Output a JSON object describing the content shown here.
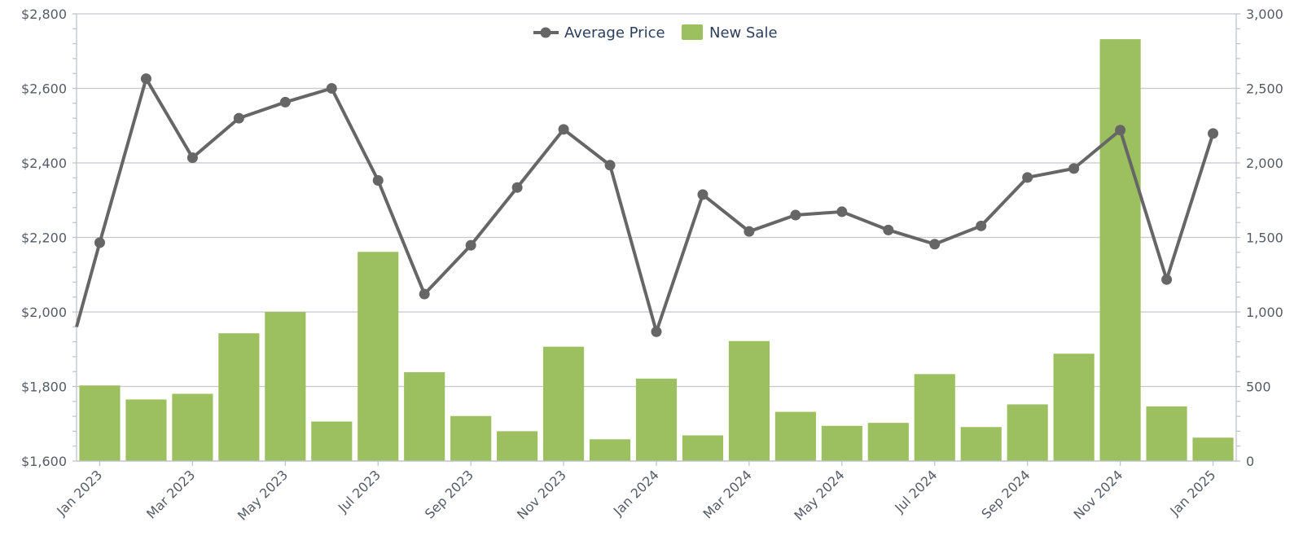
{
  "chart_data": {
    "type": "bar+line",
    "title": "",
    "x": [
      "2023-01",
      "2023-02",
      "2023-03",
      "2023-04",
      "2023-05",
      "2023-06",
      "2023-07",
      "2023-08",
      "2023-09",
      "2023-10",
      "2023-11",
      "2023-12",
      "2024-01",
      "2024-02",
      "2024-03",
      "2024-04",
      "2024-05",
      "2024-06",
      "2024-07",
      "2024-08",
      "2024-09",
      "2024-10",
      "2024-11",
      "2024-12",
      "2025-01"
    ],
    "x_tick_labels": [
      "Jan 2023",
      "Mar 2023",
      "May 2023",
      "Jul 2023",
      "Sep 2023",
      "Nov 2023",
      "Jan 2024",
      "Mar 2024",
      "May 2024",
      "Jul 2024",
      "Sep 2024",
      "Nov 2024",
      "Jan 2025"
    ],
    "series": [
      {
        "name": "Average Price",
        "type": "line",
        "axis": "left",
        "color": "#666666",
        "values": [
          2186,
          2626,
          2414,
          2520,
          2563,
          2600,
          2353,
          2048,
          2179,
          2334,
          2490,
          2394,
          1947,
          2315,
          2216,
          2260,
          2269,
          2220,
          2182,
          2231,
          2361,
          2385,
          2488,
          2087,
          2479
        ]
      },
      {
        "name": "New Sale",
        "type": "bar",
        "axis": "right",
        "color": "#9cbf60",
        "values": [
          507,
          413,
          451,
          857,
          1000,
          265,
          1403,
          596,
          302,
          200,
          767,
          146,
          553,
          172,
          805,
          330,
          236,
          256,
          583,
          228,
          380,
          720,
          2830,
          366,
          157
        ]
      }
    ],
    "y_left": {
      "ticks": [
        "$1,600",
        "$1,800",
        "$2,000",
        "$2,200",
        "$2,400",
        "$2,600",
        "$2,800"
      ],
      "range": [
        1600,
        2800
      ]
    },
    "y_right": {
      "ticks": [
        "0",
        "500",
        "1,000",
        "1,500",
        "2,000",
        "2,500",
        "3,000"
      ],
      "range": [
        0,
        3000
      ]
    },
    "grid": true,
    "legend_position": "top-center"
  }
}
